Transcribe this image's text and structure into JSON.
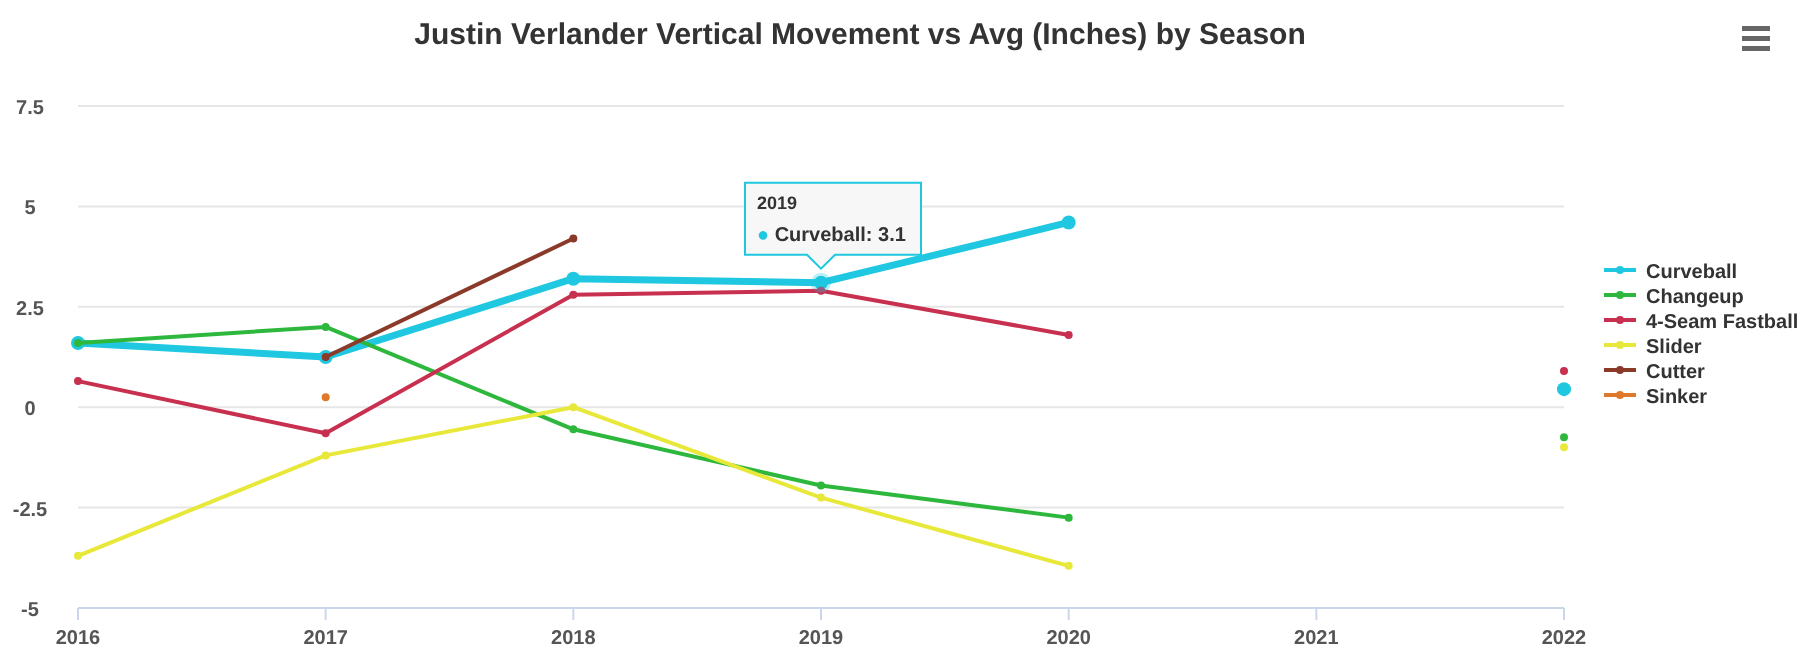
{
  "chart_data": {
    "type": "line",
    "title": "Justin Verlander Vertical Movement vs Avg (Inches) by Season",
    "x": [
      2016,
      2017,
      2018,
      2019,
      2020,
      2021,
      2022
    ],
    "series": [
      {
        "name": "Curveball",
        "color": "#1fc8e0",
        "values": [
          1.6,
          1.25,
          3.2,
          3.1,
          4.6,
          null,
          0.45
        ]
      },
      {
        "name": "Changeup",
        "color": "#2db83d",
        "values": [
          1.6,
          2.0,
          -0.55,
          -1.95,
          -2.75,
          null,
          -0.75
        ]
      },
      {
        "name": "4-Seam Fastball",
        "color": "#c8304f",
        "values": [
          0.65,
          -0.65,
          2.8,
          2.9,
          1.8,
          null,
          0.9
        ]
      },
      {
        "name": "Slider",
        "color": "#e8e83a",
        "values": [
          -3.7,
          -1.2,
          0.0,
          -2.25,
          -3.95,
          null,
          -1.0
        ]
      },
      {
        "name": "Cutter",
        "color": "#8b3a2a",
        "values": [
          null,
          1.25,
          4.2,
          null,
          null,
          null,
          null
        ]
      },
      {
        "name": "Sinker",
        "color": "#e0782a",
        "values": [
          null,
          0.25,
          null,
          null,
          null,
          null,
          null
        ]
      }
    ],
    "xlim": [
      2016,
      2022
    ],
    "xticks": [
      2016,
      2017,
      2018,
      2019,
      2020,
      2021,
      2022
    ],
    "ylim": [
      -5,
      7.5
    ],
    "yticks": [
      -5,
      -2.5,
      0,
      2.5,
      5,
      7.5
    ],
    "grid": "y",
    "legend": "right",
    "marker": "circle",
    "line_style": "solid",
    "annotations": [
      {
        "text": "2019\n● Curveball: 3.1",
        "x": 2019,
        "y": 3.1
      }
    ]
  }
}
